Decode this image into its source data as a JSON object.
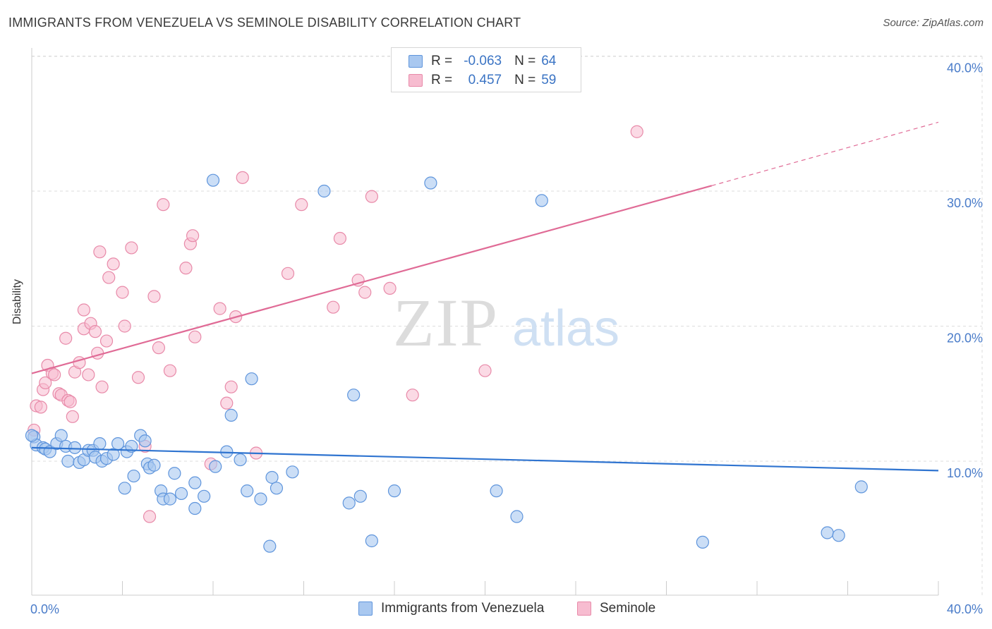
{
  "header": {
    "title": "IMMIGRANTS FROM VENEZUELA VS SEMINOLE DISABILITY CORRELATION CHART",
    "source": "Source: ZipAtlas.com"
  },
  "watermark": {
    "zip": "ZIP",
    "atlas": "atlas"
  },
  "legend": {
    "rows": [
      {
        "r_label": "R =",
        "r_value": "-0.063",
        "n_label": "N =",
        "n_value": "64",
        "color": "#a9c8f0"
      },
      {
        "r_label": "R =",
        "r_value": "0.457",
        "n_label": "N =",
        "n_value": "59",
        "color": "#f7bcd0"
      }
    ]
  },
  "bottom_legend": {
    "items": [
      {
        "label": "Immigrants from Venezuela",
        "color": "#a9c8f0"
      },
      {
        "label": "Seminole",
        "color": "#f7bcd0"
      }
    ]
  },
  "colors": {
    "blue_fill": "#a9c8f0",
    "blue_stroke": "#5f95dc",
    "blue_line": "#2f74d0",
    "pink_fill": "#f7bcd0",
    "pink_stroke": "#e88aa9",
    "pink_line": "#e06b96",
    "grid": "#dddddd",
    "tick_text": "#4a7cc9"
  },
  "chart_data": {
    "type": "scatter",
    "title": "IMMIGRANTS FROM VENEZUELA VS SEMINOLE DISABILITY CORRELATION CHART",
    "xlabel": "",
    "ylabel": "Disability",
    "xlim": [
      0,
      40
    ],
    "ylim": [
      0,
      40
    ],
    "x_tick_labels": [
      "0.0%",
      "40.0%"
    ],
    "y_ticks": [
      10,
      20,
      30,
      40
    ],
    "y_tick_labels": [
      "10.0%",
      "20.0%",
      "30.0%",
      "40.0%"
    ],
    "grid": true,
    "legend_position": "top-center",
    "series": [
      {
        "name": "Immigrants from Venezuela",
        "r": -0.063,
        "n": 64,
        "trend": {
          "x": [
            0,
            40
          ],
          "y": [
            11.0,
            9.3
          ]
        },
        "points": [
          [
            0.1,
            11.8
          ],
          [
            0.2,
            11.2
          ],
          [
            0.5,
            11.0
          ],
          [
            0.6,
            10.9
          ],
          [
            0.8,
            10.7
          ],
          [
            1.1,
            11.3
          ],
          [
            1.3,
            11.9
          ],
          [
            1.5,
            11.1
          ],
          [
            1.6,
            10.0
          ],
          [
            1.9,
            11.0
          ],
          [
            2.1,
            9.9
          ],
          [
            2.3,
            10.1
          ],
          [
            2.5,
            10.8
          ],
          [
            2.7,
            10.8
          ],
          [
            2.8,
            10.3
          ],
          [
            3.0,
            11.3
          ],
          [
            3.1,
            10.0
          ],
          [
            3.3,
            10.2
          ],
          [
            3.6,
            10.5
          ],
          [
            3.8,
            11.3
          ],
          [
            4.1,
            8.0
          ],
          [
            4.2,
            10.7
          ],
          [
            4.4,
            11.1
          ],
          [
            4.5,
            8.9
          ],
          [
            4.8,
            11.9
          ],
          [
            5.0,
            11.5
          ],
          [
            5.1,
            9.8
          ],
          [
            5.2,
            9.5
          ],
          [
            5.4,
            9.7
          ],
          [
            5.7,
            7.8
          ],
          [
            5.8,
            7.2
          ],
          [
            6.1,
            7.2
          ],
          [
            6.3,
            9.1
          ],
          [
            6.6,
            7.6
          ],
          [
            7.2,
            8.4
          ],
          [
            7.2,
            6.5
          ],
          [
            7.6,
            7.4
          ],
          [
            8.0,
            30.8
          ],
          [
            8.1,
            9.6
          ],
          [
            8.6,
            10.7
          ],
          [
            8.8,
            13.4
          ],
          [
            9.2,
            10.1
          ],
          [
            9.5,
            7.8
          ],
          [
            9.7,
            16.1
          ],
          [
            10.1,
            7.2
          ],
          [
            10.5,
            3.7
          ],
          [
            10.6,
            8.8
          ],
          [
            10.8,
            8.0
          ],
          [
            11.5,
            9.2
          ],
          [
            12.9,
            30.0
          ],
          [
            14.0,
            6.9
          ],
          [
            14.2,
            14.9
          ],
          [
            14.5,
            7.4
          ],
          [
            15.0,
            4.1
          ],
          [
            16.0,
            7.8
          ],
          [
            17.6,
            30.6
          ],
          [
            20.5,
            7.8
          ],
          [
            21.4,
            5.9
          ],
          [
            22.5,
            29.3
          ],
          [
            29.6,
            4.0
          ],
          [
            35.1,
            4.7
          ],
          [
            35.6,
            4.5
          ],
          [
            36.6,
            8.1
          ],
          [
            0.0,
            11.9
          ]
        ]
      },
      {
        "name": "Seminole",
        "r": 0.457,
        "n": 59,
        "trend": {
          "x": [
            0,
            30
          ],
          "y": [
            16.5,
            30.4
          ]
        },
        "trend_dashed": {
          "x": [
            30,
            40
          ],
          "y": [
            30.4,
            35.1
          ]
        },
        "points": [
          [
            0.1,
            12.3
          ],
          [
            0.2,
            14.1
          ],
          [
            0.4,
            14.0
          ],
          [
            0.5,
            15.3
          ],
          [
            0.6,
            15.8
          ],
          [
            0.7,
            17.1
          ],
          [
            0.9,
            16.5
          ],
          [
            1.0,
            16.4
          ],
          [
            1.2,
            15.0
          ],
          [
            1.3,
            14.9
          ],
          [
            1.5,
            19.1
          ],
          [
            1.6,
            14.5
          ],
          [
            1.7,
            14.4
          ],
          [
            1.8,
            13.3
          ],
          [
            1.9,
            16.6
          ],
          [
            2.1,
            17.3
          ],
          [
            2.3,
            21.2
          ],
          [
            2.3,
            19.8
          ],
          [
            2.5,
            16.4
          ],
          [
            2.6,
            20.2
          ],
          [
            2.8,
            19.6
          ],
          [
            2.9,
            18.0
          ],
          [
            3.0,
            25.5
          ],
          [
            3.1,
            15.5
          ],
          [
            3.3,
            18.9
          ],
          [
            3.4,
            23.6
          ],
          [
            3.6,
            24.6
          ],
          [
            4.0,
            22.5
          ],
          [
            4.1,
            20.0
          ],
          [
            4.4,
            25.8
          ],
          [
            4.7,
            16.2
          ],
          [
            5.0,
            11.1
          ],
          [
            5.2,
            5.9
          ],
          [
            5.4,
            22.2
          ],
          [
            5.6,
            18.4
          ],
          [
            5.8,
            29.0
          ],
          [
            6.1,
            16.7
          ],
          [
            6.8,
            24.3
          ],
          [
            7.0,
            26.1
          ],
          [
            7.1,
            26.7
          ],
          [
            7.2,
            19.2
          ],
          [
            7.9,
            9.8
          ],
          [
            8.3,
            21.3
          ],
          [
            8.6,
            14.3
          ],
          [
            8.8,
            15.5
          ],
          [
            9.0,
            20.7
          ],
          [
            9.3,
            31.0
          ],
          [
            9.9,
            10.6
          ],
          [
            11.3,
            23.9
          ],
          [
            11.9,
            29.0
          ],
          [
            13.3,
            21.4
          ],
          [
            13.6,
            26.5
          ],
          [
            14.4,
            23.4
          ],
          [
            14.7,
            22.5
          ],
          [
            15.0,
            29.6
          ],
          [
            15.8,
            22.8
          ],
          [
            16.8,
            14.9
          ],
          [
            20.0,
            16.7
          ],
          [
            26.7,
            34.4
          ]
        ]
      }
    ]
  }
}
